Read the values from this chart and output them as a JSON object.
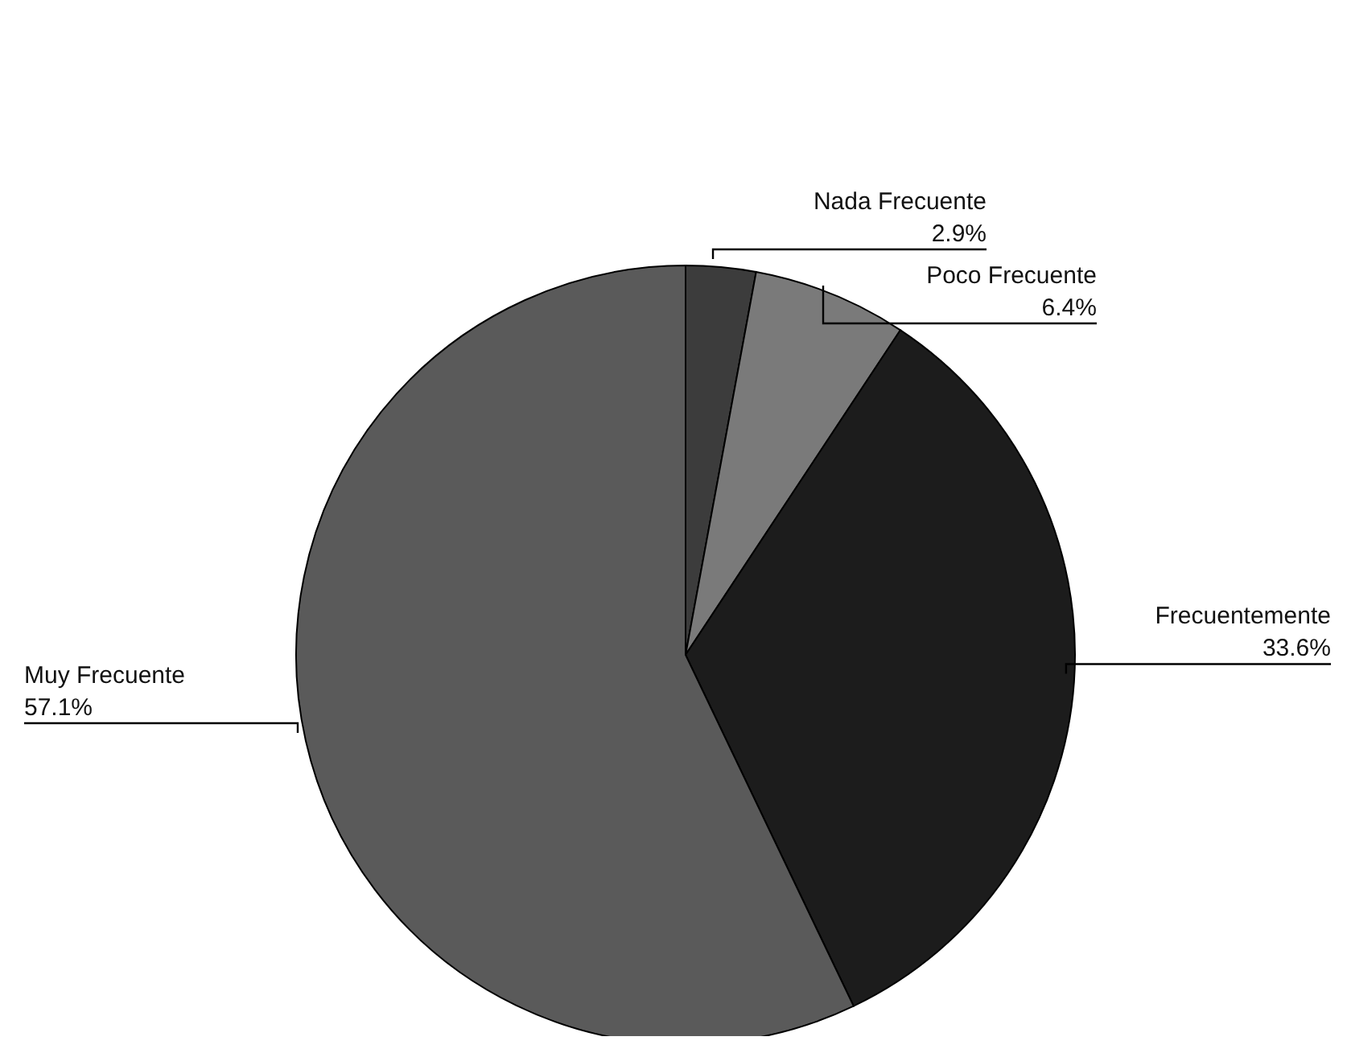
{
  "chart_data": {
    "type": "pie",
    "categories": [
      "Nada Frecuente",
      "Poco Frecuente",
      "Frecuentemente",
      "Muy Frecuente"
    ],
    "values": [
      2.9,
      6.4,
      33.6,
      57.1
    ],
    "colors": [
      "#3c3c3c",
      "#7a7a7a",
      "#1c1c1c",
      "#5a5a5a"
    ],
    "value_labels": [
      "2.9%",
      "6.4%",
      "33.6%",
      "57.1%"
    ],
    "legend": false
  }
}
